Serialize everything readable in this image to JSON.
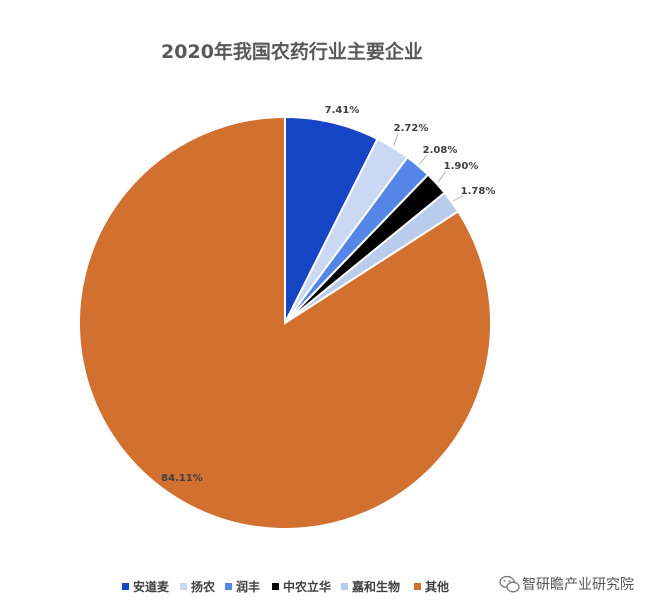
{
  "chart_data": {
    "type": "pie",
    "title": "2020年我国农药行业主要企业",
    "categories": [
      "安道麦",
      "扬农",
      "润丰",
      "中农立华",
      "嘉和生物",
      "其他"
    ],
    "values": [
      7.41,
      2.72,
      2.08,
      1.9,
      1.78,
      84.11
    ],
    "labels": [
      "7.41%",
      "2.72%",
      "2.08%",
      "1.90%",
      "1.78%",
      "84.11%"
    ],
    "colors": [
      "#1544C4",
      "#C9D9F4",
      "#5585E6",
      "#000000",
      "#B9CCEC",
      "#D2702F"
    ],
    "legend": "bottom"
  },
  "watermark": {
    "text": "智研瞻产业研究院",
    "icon": "wechat-icon"
  }
}
